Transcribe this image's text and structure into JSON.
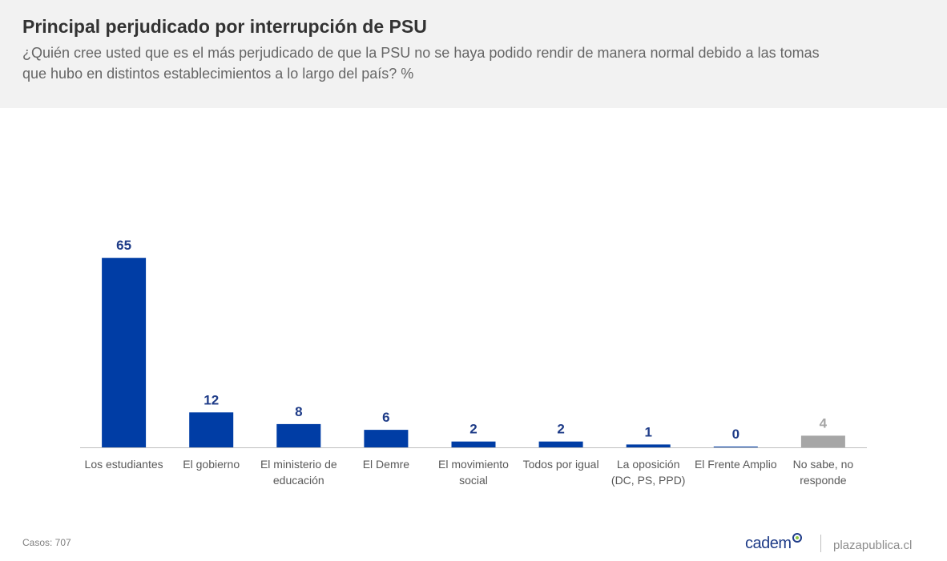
{
  "header": {
    "title": "Principal perjudicado por interrupción de PSU",
    "subtitle": "¿Quién cree usted que es el más perjudicado de que la PSU no se haya podido rendir de manera normal debido a las tomas que hubo en distintos establecimientos a lo largo del país? %"
  },
  "chart_data": {
    "type": "bar",
    "title": "Principal perjudicado por interrupción de PSU",
    "xlabel": "",
    "ylabel": "%",
    "ylim": [
      0,
      70
    ],
    "grid": false,
    "categories": [
      [
        "Los estudiantes"
      ],
      [
        "El gobierno"
      ],
      [
        "El ministerio de",
        "educación"
      ],
      [
        "El Demre"
      ],
      [
        "El movimiento",
        "social"
      ],
      [
        "Todos por igual"
      ],
      [
        "La oposición",
        "(DC, PS, PPD)"
      ],
      [
        "El Frente Amplio"
      ],
      [
        "No sabe, no",
        "responde"
      ]
    ],
    "values": [
      65,
      12,
      8,
      6,
      2,
      2,
      1,
      0,
      4
    ],
    "colors": [
      "#003da5",
      "#003da5",
      "#003da5",
      "#003da5",
      "#003da5",
      "#003da5",
      "#003da5",
      "#003da5",
      "#a6a6a6"
    ],
    "label_colors": [
      "#1f3c88",
      "#1f3c88",
      "#1f3c88",
      "#1f3c88",
      "#1f3c88",
      "#1f3c88",
      "#1f3c88",
      "#1f3c88",
      "#a6a6a6"
    ]
  },
  "footer": {
    "cases": "Casos: 707",
    "brand": "cadem",
    "site": "plazapublica.cl"
  }
}
